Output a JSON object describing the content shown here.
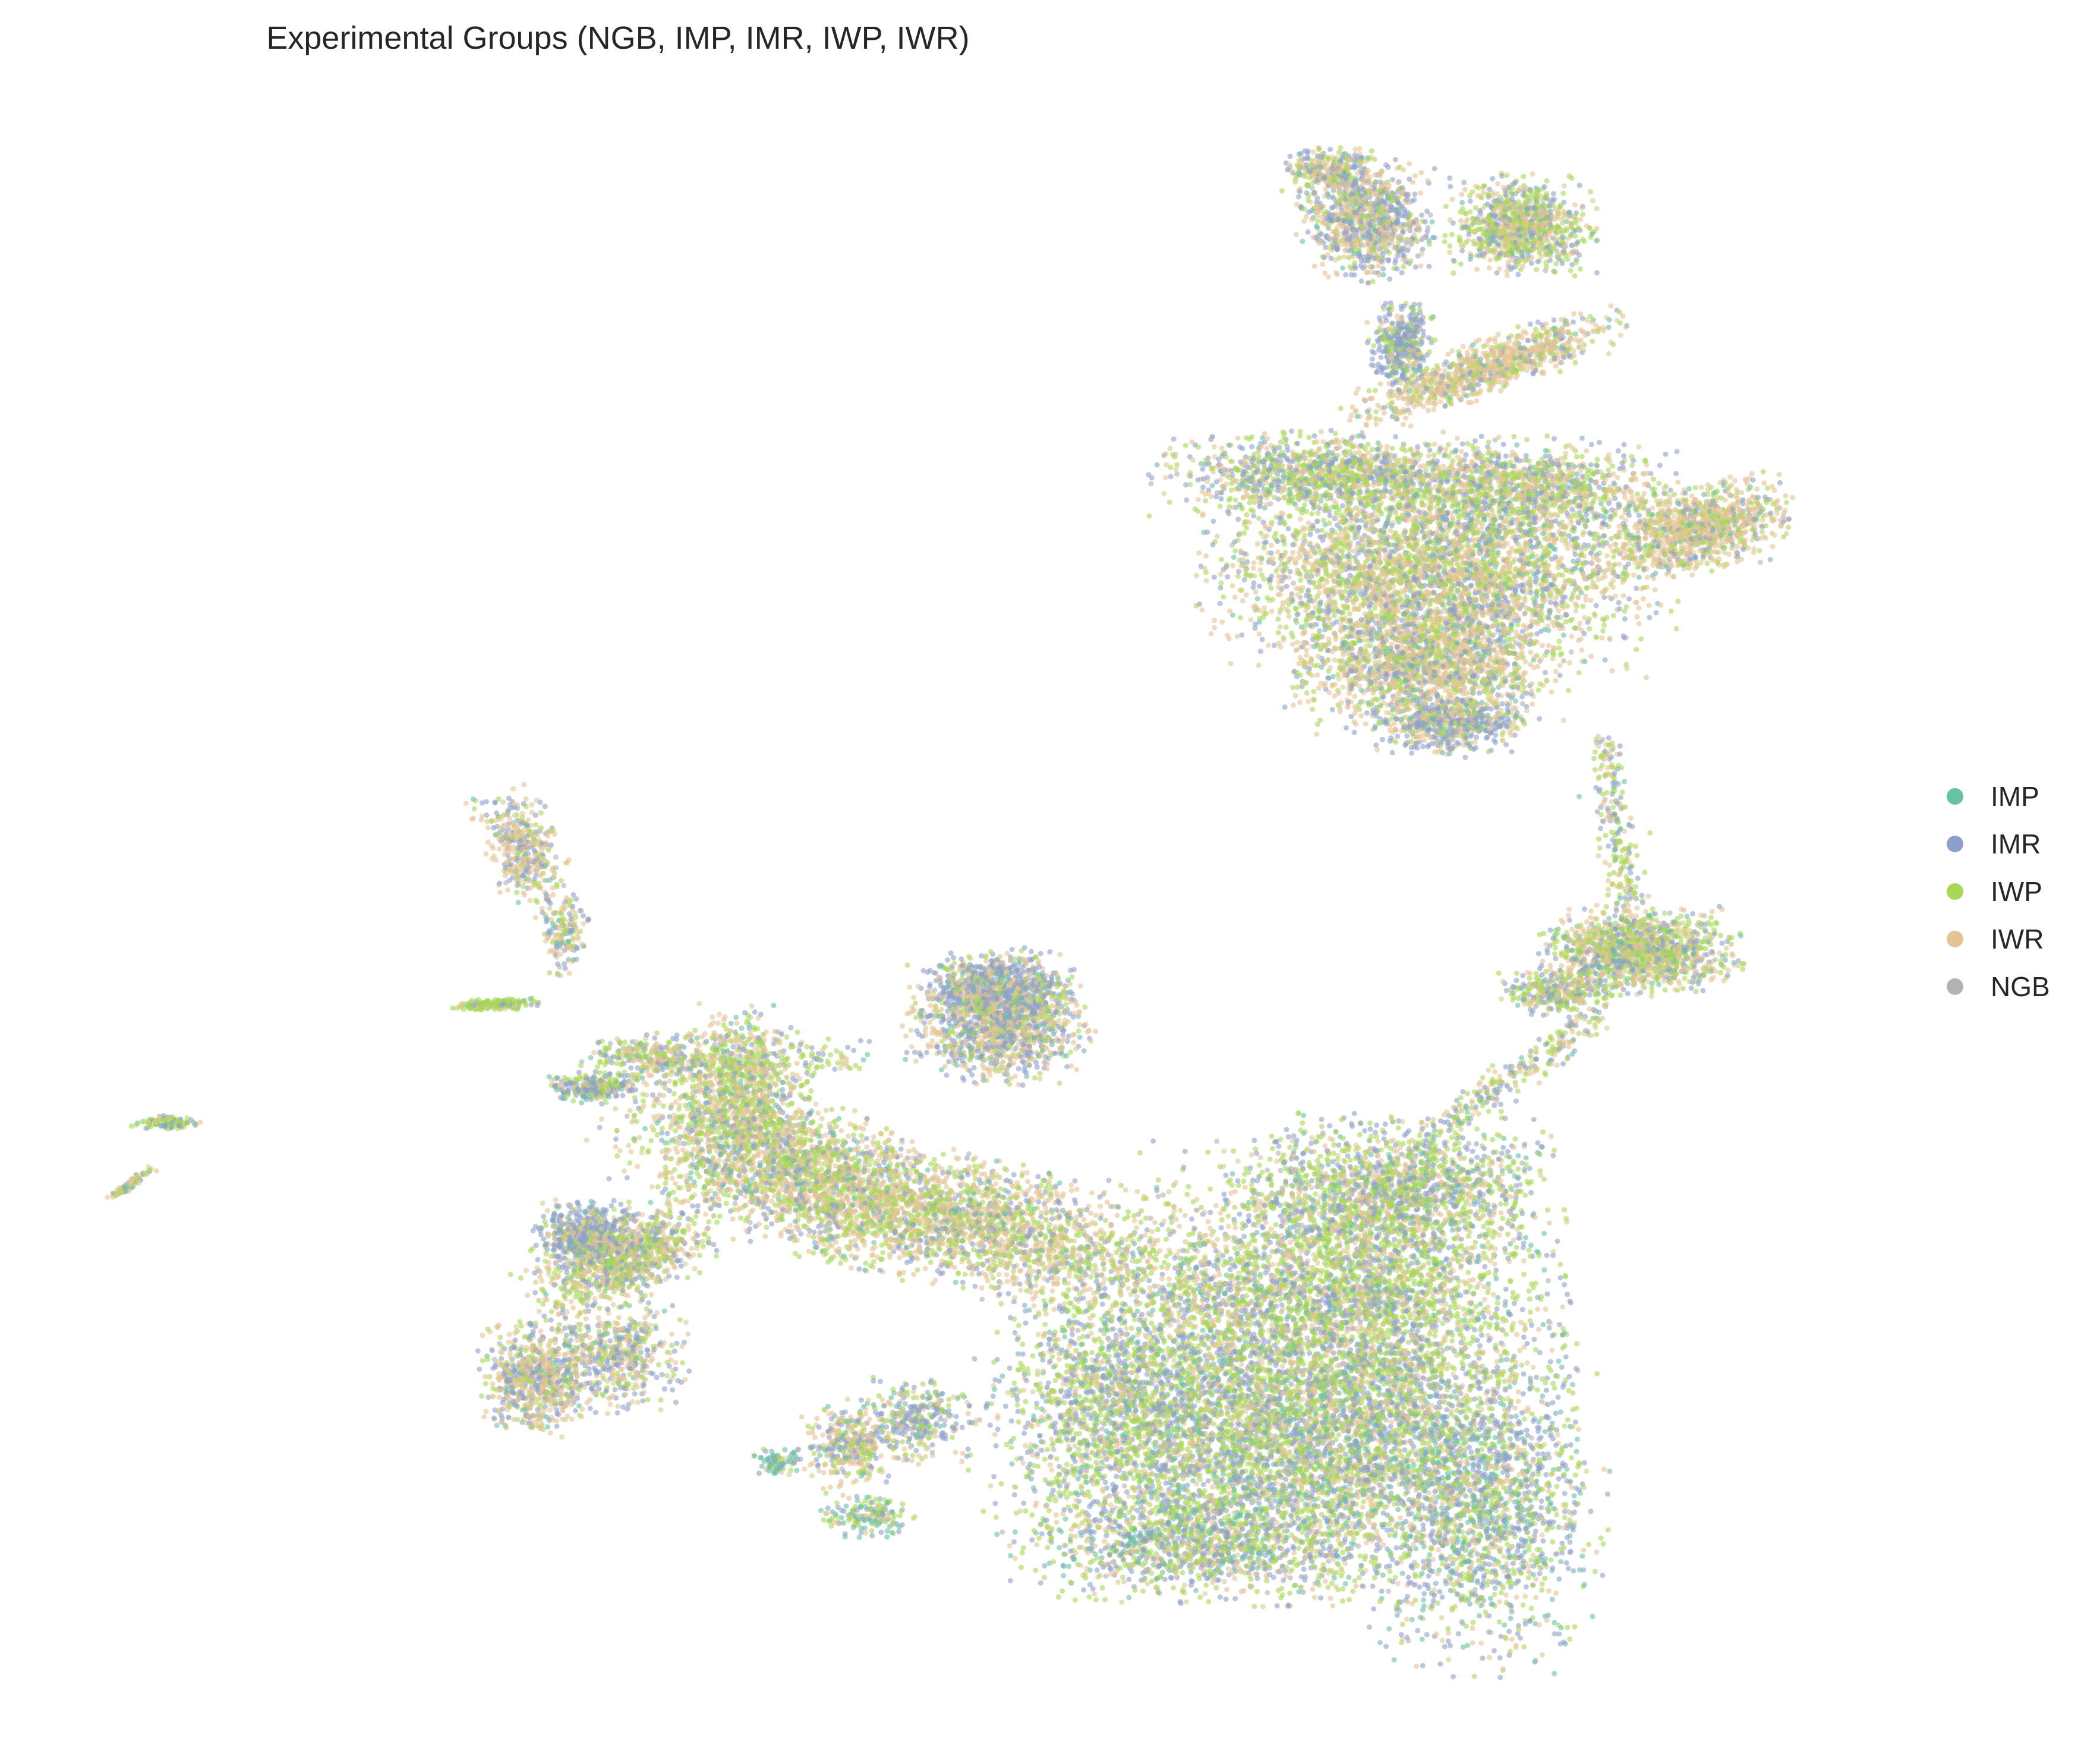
{
  "chart_data": {
    "type": "scatter",
    "title": "Experimental Groups (NGB, IMP, IMR, IWP, IWR)",
    "xlabel": "",
    "ylabel": "",
    "axes_visible": false,
    "grid": false,
    "legend_position": "right-center",
    "point_alpha": 0.6,
    "series": [
      {
        "name": "IMP",
        "color": "#66c2a5"
      },
      {
        "name": "IMR",
        "color": "#8da0cb"
      },
      {
        "name": "IWP",
        "color": "#a6d854"
      },
      {
        "name": "IWR",
        "color": "#e5c494"
      },
      {
        "name": "NGB",
        "color": "#b3b3b3"
      }
    ],
    "point_shape": "small filled circles, densely overplotted, forming several clusters: a large lower-right mass, an elongated band extending to the lower-left with arms, a lower-left cluster, a small upper-middle cluster, a right-middle cluster, an upper-right fan-shaped cluster topped by a smaller two-lobed cluster, and a few tiny isolated streaks on the far left"
  }
}
